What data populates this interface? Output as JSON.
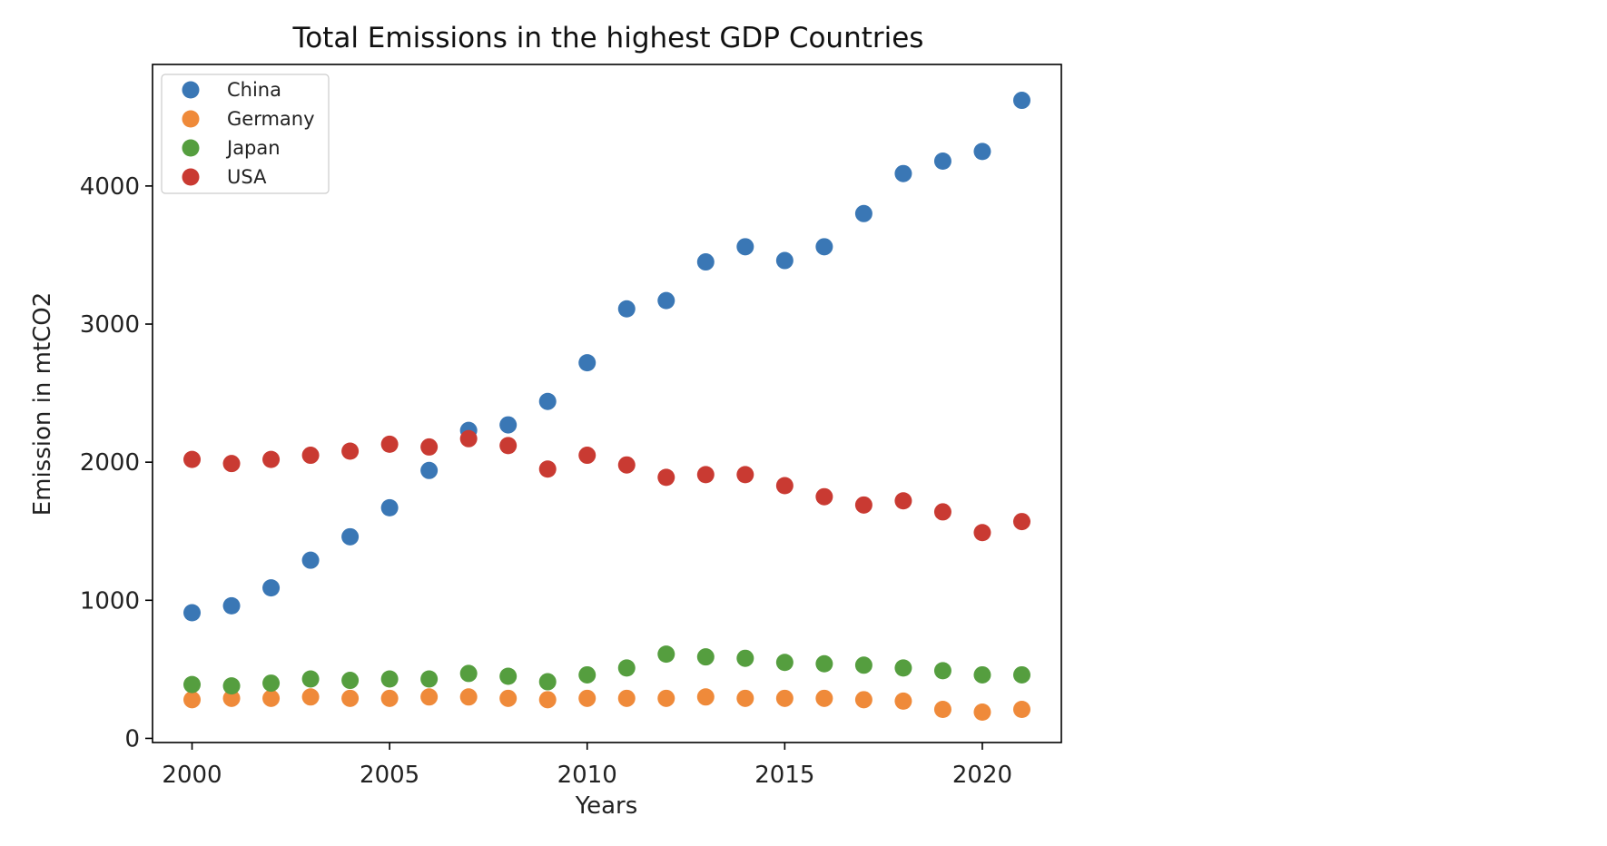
{
  "chart_data": {
    "type": "scatter",
    "title": "Total Emissions in the highest GDP Countries",
    "xlabel": "Years",
    "ylabel": "Emission in mtCO2",
    "xlim": [
      1999,
      2022
    ],
    "ylim": [
      -30,
      4880
    ],
    "x_ticks": [
      2000,
      2005,
      2010,
      2015,
      2020
    ],
    "y_ticks": [
      0,
      1000,
      2000,
      3000,
      4000
    ],
    "grid": false,
    "legend_position": "top-left",
    "x": [
      2000,
      2001,
      2002,
      2003,
      2004,
      2005,
      2006,
      2007,
      2008,
      2009,
      2010,
      2011,
      2012,
      2013,
      2014,
      2015,
      2016,
      2017,
      2018,
      2019,
      2020,
      2021
    ],
    "series": [
      {
        "name": "China",
        "color": "#3a77b5",
        "values": [
          910,
          960,
          1090,
          1290,
          1460,
          1670,
          1940,
          2230,
          2270,
          2440,
          2720,
          3110,
          3170,
          3450,
          3560,
          3460,
          3560,
          3800,
          4090,
          4180,
          4250,
          4620
        ]
      },
      {
        "name": "Germany",
        "color": "#ef8a3a",
        "values": [
          280,
          290,
          290,
          300,
          290,
          290,
          300,
          300,
          290,
          280,
          290,
          290,
          290,
          300,
          290,
          290,
          290,
          280,
          270,
          210,
          190,
          210
        ]
      },
      {
        "name": "Japan",
        "color": "#559e3f",
        "values": [
          390,
          380,
          400,
          430,
          420,
          430,
          430,
          470,
          450,
          410,
          460,
          510,
          610,
          590,
          580,
          550,
          540,
          530,
          510,
          490,
          460,
          460
        ]
      },
      {
        "name": "USA",
        "color": "#c93a32",
        "values": [
          2020,
          1990,
          2020,
          2050,
          2080,
          2130,
          2110,
          2170,
          2120,
          1950,
          2050,
          1980,
          1890,
          1910,
          1910,
          1830,
          1750,
          1690,
          1720,
          1640,
          1490,
          1570
        ]
      }
    ]
  }
}
